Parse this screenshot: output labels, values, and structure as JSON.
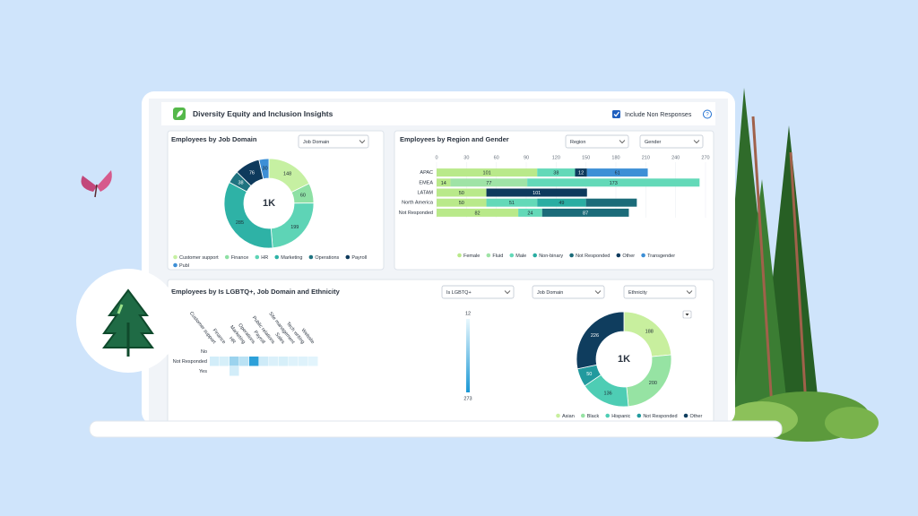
{
  "header": {
    "title": "Diversity Equity and Inclusion Insights",
    "checkbox_label": "Include Non Responses",
    "help": "?"
  },
  "panels": [
    {
      "title": "Employees by Job Domain",
      "filters": [
        "Job Domain"
      ],
      "chart": {
        "type": "pie",
        "center_label": "1K",
        "categories": [
          "Customer support",
          "Finance",
          "HR",
          "Marketing",
          "Operations",
          "Payroll",
          "Publ"
        ],
        "values": [
          148,
          60,
          199,
          285,
          38,
          76,
          30
        ],
        "colors": [
          "#c6f0a2",
          "#8ee0a4",
          "#5ed4b6",
          "#2eb2a6",
          "#1f7380",
          "#0e3a5c",
          "#3d8fd6"
        ]
      }
    },
    {
      "title": "Employees by Region and Gender",
      "filters": [
        "Region",
        "Gender"
      ],
      "chart": {
        "type": "bar",
        "orientation": "horizontal",
        "stacked": true,
        "grid": true,
        "categories": [
          "APAC",
          "EMEA",
          "LATAM",
          "North America",
          "Not Responded"
        ],
        "xlim": [
          0,
          270
        ],
        "xticks": [
          0,
          30,
          60,
          90,
          120,
          150,
          180,
          210,
          240,
          270
        ],
        "series": [
          {
            "name": "Female",
            "color": "#b9e98a",
            "values": [
              101,
              14,
              50,
              50,
              82
            ]
          },
          {
            "name": "Fluid",
            "color": "#9fe3a6",
            "values": [
              null,
              77,
              null,
              null,
              null
            ]
          },
          {
            "name": "Male",
            "color": "#63d9b8",
            "values": [
              38,
              173,
              null,
              51,
              24
            ]
          },
          {
            "name": "Non-binary",
            "color": "#2aada2",
            "values": [
              null,
              null,
              null,
              49,
              null
            ]
          },
          {
            "name": "Not Responded",
            "color": "#1b6b79",
            "values": [
              null,
              null,
              null,
              51,
              87
            ],
            "value_labels": [
              null,
              null,
              null,
              null,
              "87"
            ]
          },
          {
            "name": "Other",
            "color": "#0d3a5d",
            "values": [
              12,
              null,
              101,
              null,
              null
            ]
          },
          {
            "name": "Transgender",
            "color": "#3d8fd6",
            "values": [
              61,
              null,
              null,
              null,
              null
            ]
          }
        ]
      }
    },
    {
      "title": "Employees by Is LGBTQ+, Job Domain and Ethnicity",
      "filters": [
        "Is LGBTQ+",
        "Job Domain",
        "Ethnicity"
      ],
      "charts": [
        {
          "type": "heatmap",
          "x": [
            "Customer support",
            "Finance",
            "HR",
            "Marketing",
            "Operations",
            "Payroll",
            "Public relations",
            "Sales",
            "Site management",
            "Tech writing",
            "Website"
          ],
          "y": [
            "No",
            "Not Responded",
            "Yes"
          ],
          "values": [
            [
              null,
              null,
              null,
              null,
              null,
              null,
              null,
              null,
              null,
              null,
              null
            ],
            [
              40,
              35,
              110,
              70,
              250,
              45,
              30,
              35,
              25,
              25,
              20
            ],
            [
              null,
              null,
              40,
              null,
              null,
              null,
              null,
              null,
              null,
              null,
              null
            ]
          ],
          "clim": [
            12,
            273
          ],
          "cticks": [
            12,
            273
          ],
          "colors": [
            "#e8f7fd",
            "#1a98d5"
          ]
        },
        {
          "type": "pie",
          "center_label": "1K",
          "categories": [
            "Asian",
            "Black",
            "Hispanic",
            "Not Responded",
            "Other"
          ],
          "values": [
            188,
            200,
            136,
            50,
            226
          ],
          "colors": [
            "#c8ef9e",
            "#96e3a3",
            "#4ecdb4",
            "#229a9e",
            "#0f3d5e"
          ]
        }
      ]
    }
  ]
}
